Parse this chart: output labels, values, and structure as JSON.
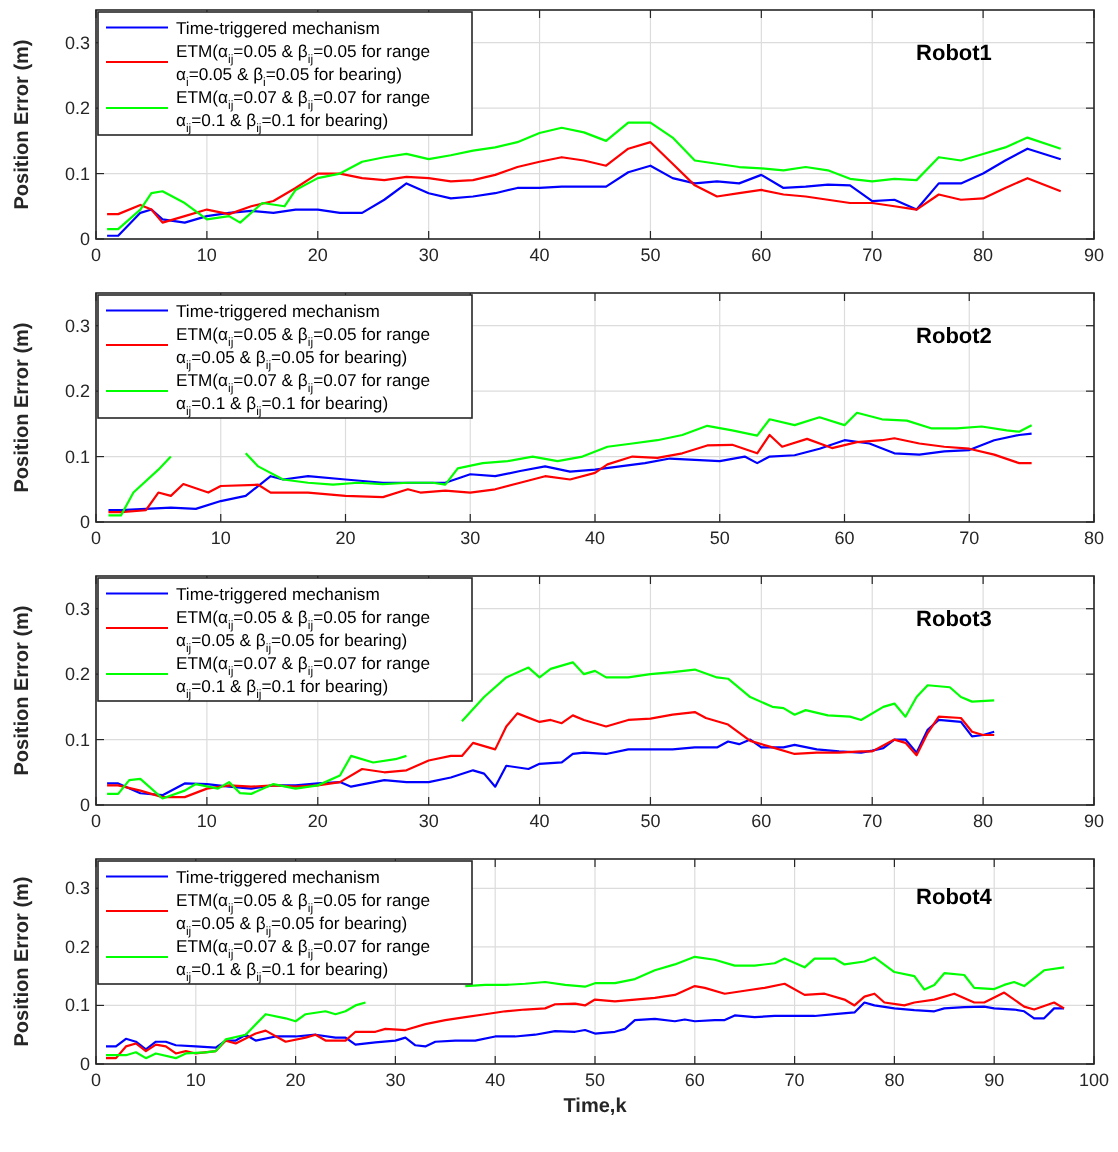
{
  "chart_data": [
    {
      "type": "line",
      "ylabel": "Position Error (m)",
      "xlim": [
        0,
        90
      ],
      "xticks": [
        0,
        10,
        20,
        30,
        40,
        50,
        60,
        70,
        80,
        90
      ],
      "ylim": [
        0,
        0.35
      ],
      "yticks": [
        0,
        0.1,
        0.2,
        0.3
      ],
      "grid": true,
      "legend": "top left",
      "line_style": "solid",
      "annotations": [
        "Robot1"
      ],
      "series": [
        {
          "name": "Time-triggered mechanism",
          "color": "#0000ff",
          "x": [
            1,
            2,
            4,
            5,
            6,
            8,
            10,
            12,
            14,
            16,
            18,
            20,
            22,
            24,
            26,
            28,
            30,
            32,
            34,
            36,
            38,
            40,
            42,
            44,
            46,
            48,
            50,
            52,
            54,
            56,
            58,
            60,
            62,
            64,
            66,
            68,
            70,
            72,
            74,
            76,
            78,
            80,
            82,
            84,
            87
          ],
          "values": [
            0.005,
            0.005,
            0.04,
            0.045,
            0.03,
            0.025,
            0.035,
            0.04,
            0.043,
            0.04,
            0.045,
            0.045,
            0.04,
            0.04,
            0.06,
            0.085,
            0.07,
            0.062,
            0.065,
            0.07,
            0.078,
            0.078,
            0.08,
            0.08,
            0.08,
            0.102,
            0.112,
            0.093,
            0.085,
            0.088,
            0.085,
            0.098,
            0.078,
            0.08,
            0.083,
            0.082,
            0.058,
            0.06,
            0.045,
            0.085,
            0.085,
            0.1,
            0.12,
            0.138,
            0.122
          ]
        },
        {
          "name": "ETM(α$_{ij}$=0.05 & β$_{ij}$=0.05 for range\nα$_{i}$=0.05 & β$_{i}$=0.05 for bearing)",
          "color": "#ff0000",
          "x": [
            1,
            2,
            4,
            5,
            6,
            8,
            10,
            12,
            14,
            16,
            18,
            20,
            22,
            24,
            26,
            28,
            30,
            32,
            34,
            36,
            38,
            40,
            42,
            44,
            46,
            48,
            50,
            52,
            54,
            56,
            58,
            60,
            62,
            64,
            66,
            68,
            70,
            72,
            74,
            76,
            78,
            80,
            82,
            84,
            87
          ],
          "values": [
            0.038,
            0.038,
            0.052,
            0.045,
            0.025,
            0.035,
            0.045,
            0.038,
            0.05,
            0.058,
            0.078,
            0.1,
            0.1,
            0.093,
            0.09,
            0.095,
            0.093,
            0.088,
            0.09,
            0.098,
            0.11,
            0.118,
            0.125,
            0.12,
            0.112,
            0.138,
            0.148,
            0.115,
            0.082,
            0.065,
            0.07,
            0.075,
            0.068,
            0.065,
            0.06,
            0.055,
            0.055,
            0.05,
            0.045,
            0.068,
            0.06,
            0.062,
            0.078,
            0.093,
            0.073
          ]
        },
        {
          "name": "ETM(α$_{ij}$=0.07 & β$_{ij}$=0.07 for range\nα$_{ij}$=0.1 & β$_{ij}$=0.1 for bearing)",
          "color": "#00ff00",
          "x": [
            1,
            2,
            4,
            5,
            6,
            8,
            10,
            12,
            13,
            15,
            17,
            18,
            20,
            22,
            24,
            26,
            28,
            30,
            32,
            34,
            36,
            38,
            40,
            42,
            44,
            46,
            48,
            50,
            52,
            54,
            56,
            58,
            60,
            62,
            64,
            66,
            68,
            70,
            72,
            74,
            76,
            78,
            80,
            82,
            84,
            87
          ],
          "values": [
            0.015,
            0.015,
            0.045,
            0.07,
            0.073,
            0.055,
            0.03,
            0.035,
            0.025,
            0.055,
            0.05,
            0.075,
            0.093,
            0.1,
            0.118,
            0.125,
            0.13,
            0.122,
            0.128,
            0.135,
            0.14,
            0.148,
            0.162,
            0.17,
            0.163,
            0.15,
            0.178,
            0.178,
            0.155,
            0.12,
            0.115,
            0.11,
            0.108,
            0.105,
            0.11,
            0.105,
            0.092,
            0.088,
            0.092,
            0.09,
            0.125,
            0.12,
            0.13,
            0.14,
            0.155,
            0.138
          ]
        }
      ]
    },
    {
      "type": "line",
      "ylabel": "Position Error (m)",
      "xlim": [
        0,
        80
      ],
      "xticks": [
        0,
        10,
        20,
        30,
        40,
        50,
        60,
        70,
        80
      ],
      "ylim": [
        0,
        0.35
      ],
      "yticks": [
        0,
        0.1,
        0.2,
        0.3
      ],
      "grid": true,
      "legend": "top left",
      "line_style": "solid",
      "annotations": [
        "Robot2"
      ],
      "series": [
        {
          "name": "Time-triggered mechanism",
          "color": "#0000ff",
          "x": [
            1,
            2,
            4,
            6,
            8,
            10,
            12,
            14,
            15,
            17,
            20,
            23,
            26,
            28,
            30,
            32,
            34,
            36,
            38,
            40,
            42,
            44,
            46,
            48,
            50,
            52,
            53,
            54,
            56,
            58,
            60,
            62,
            64,
            66,
            68,
            70,
            72,
            74,
            75
          ],
          "values": [
            0.018,
            0.018,
            0.02,
            0.022,
            0.02,
            0.032,
            0.04,
            0.07,
            0.065,
            0.07,
            0.065,
            0.06,
            0.06,
            0.06,
            0.073,
            0.07,
            0.078,
            0.085,
            0.077,
            0.08,
            0.085,
            0.09,
            0.097,
            0.095,
            0.093,
            0.1,
            0.09,
            0.1,
            0.102,
            0.112,
            0.125,
            0.12,
            0.105,
            0.103,
            0.108,
            0.11,
            0.125,
            0.133,
            0.135
          ]
        },
        {
          "name": "ETM(α$_{ij}$=0.05 & β$_{ij}$=0.05 for range\nα$_{ij}$=0.05 & β$_{ij}$=0.05 for bearing)",
          "color": "#ff0000",
          "x": [
            1,
            2,
            4,
            5,
            6,
            7,
            9,
            10,
            13,
            14,
            17,
            20,
            23,
            25,
            26,
            28,
            30,
            32,
            34,
            36,
            38,
            40,
            41,
            43,
            45,
            47,
            49,
            51,
            53,
            54,
            55,
            57,
            59,
            61,
            63,
            64,
            66,
            68,
            70,
            72,
            74,
            75
          ],
          "values": [
            0.015,
            0.015,
            0.018,
            0.045,
            0.04,
            0.058,
            0.045,
            0.055,
            0.057,
            0.045,
            0.045,
            0.04,
            0.038,
            0.05,
            0.045,
            0.048,
            0.045,
            0.05,
            0.06,
            0.07,
            0.065,
            0.075,
            0.088,
            0.1,
            0.098,
            0.105,
            0.117,
            0.118,
            0.105,
            0.133,
            0.115,
            0.127,
            0.113,
            0.122,
            0.125,
            0.128,
            0.12,
            0.115,
            0.112,
            0.103,
            0.09,
            0.09
          ]
        },
        {
          "name": "ETM(α$_{ij}$=0.07 & β$_{ij}$=0.07 for range\nα$_{ij}$=0.1 & β$_{ij}$=0.1 for bearing)",
          "color": "#00ff00",
          "x": [
            1,
            2,
            3,
            5,
            6,
            7,
            12,
            13,
            15,
            17,
            19,
            21,
            23,
            25,
            27,
            28,
            29,
            31,
            33,
            35,
            37,
            39,
            41,
            43,
            45,
            47,
            49,
            51,
            53,
            54,
            56,
            58,
            60,
            61,
            63,
            65,
            67,
            69,
            71,
            73,
            74,
            75
          ],
          "values": [
            0.01,
            0.01,
            0.045,
            0.08,
            0.1,
            null,
            0.105,
            0.085,
            0.065,
            0.06,
            0.057,
            0.06,
            0.058,
            0.06,
            0.06,
            0.057,
            0.082,
            0.09,
            0.093,
            0.1,
            0.093,
            0.1,
            0.115,
            0.12,
            0.125,
            0.133,
            0.147,
            0.14,
            0.132,
            0.157,
            0.148,
            0.16,
            0.148,
            0.167,
            0.157,
            0.155,
            0.143,
            0.143,
            0.146,
            0.14,
            0.138,
            0.148
          ]
        }
      ]
    },
    {
      "type": "line",
      "ylabel": "Position Error (m)",
      "xlim": [
        0,
        90
      ],
      "xticks": [
        0,
        10,
        20,
        30,
        40,
        50,
        60,
        70,
        80,
        90
      ],
      "ylim": [
        0,
        0.35
      ],
      "yticks": [
        0,
        0.1,
        0.2,
        0.3
      ],
      "grid": true,
      "legend": "top left",
      "line_style": "solid",
      "annotations": [
        "Robot3"
      ],
      "series": [
        {
          "name": "Time-triggered mechanism",
          "color": "#0000ff",
          "x": [
            1,
            2,
            4,
            6,
            8,
            10,
            12,
            14,
            16,
            18,
            20,
            22,
            23,
            26,
            28,
            30,
            32,
            34,
            35,
            36,
            37,
            39,
            40,
            42,
            43,
            44,
            46,
            48,
            50,
            52,
            54,
            56,
            57,
            58,
            59,
            60,
            62,
            63,
            65,
            67,
            69,
            70,
            71,
            72,
            73,
            74,
            75,
            76,
            78,
            79,
            80,
            81
          ],
          "values": [
            0.033,
            0.033,
            0.018,
            0.015,
            0.033,
            0.032,
            0.028,
            0.025,
            0.03,
            0.03,
            0.033,
            0.035,
            0.028,
            0.038,
            0.035,
            0.035,
            0.042,
            0.053,
            0.048,
            0.028,
            0.06,
            0.055,
            0.063,
            0.065,
            0.078,
            0.08,
            0.078,
            0.085,
            0.085,
            0.085,
            0.088,
            0.088,
            0.097,
            0.093,
            0.1,
            0.088,
            0.088,
            0.092,
            0.085,
            0.082,
            0.08,
            0.083,
            0.087,
            0.1,
            0.1,
            0.08,
            0.115,
            0.13,
            0.127,
            0.105,
            0.107,
            0.112
          ]
        },
        {
          "name": "ETM(α$_{ij}$=0.05 & β$_{ij}$=0.05 for range\nα$_{ij}$=0.05 & β$_{ij}$=0.05 for bearing)",
          "color": "#ff0000",
          "x": [
            1,
            2,
            4,
            6,
            8,
            10,
            12,
            14,
            16,
            18,
            20,
            22,
            24,
            26,
            28,
            30,
            32,
            33,
            34,
            36,
            37,
            38,
            40,
            41,
            42,
            43,
            44,
            46,
            48,
            50,
            52,
            54,
            55,
            57,
            59,
            61,
            63,
            65,
            67,
            69,
            70,
            72,
            73,
            74,
            75,
            76,
            78,
            79,
            80,
            81
          ],
          "values": [
            0.03,
            0.03,
            0.022,
            0.012,
            0.012,
            0.025,
            0.03,
            0.028,
            0.03,
            0.028,
            0.03,
            0.035,
            0.055,
            0.05,
            0.053,
            0.068,
            0.075,
            0.075,
            0.095,
            0.085,
            0.12,
            0.14,
            0.127,
            0.13,
            0.125,
            0.137,
            0.13,
            0.12,
            0.13,
            0.132,
            0.138,
            0.142,
            0.133,
            0.123,
            0.098,
            0.088,
            0.078,
            0.08,
            0.08,
            0.082,
            0.082,
            0.1,
            0.095,
            0.076,
            0.11,
            0.135,
            0.133,
            0.112,
            0.107,
            0.107
          ]
        },
        {
          "name": "ETM(α$_{ij}$=0.07 & β$_{ij}$=0.07 for range\nα$_{ij}$=0.1 & β$_{ij}$=0.1 for bearing)",
          "color": "#00ff00",
          "x": [
            1,
            2,
            3,
            4,
            6,
            8,
            9,
            11,
            12,
            13,
            14,
            16,
            18,
            20,
            22,
            23,
            25,
            27,
            28,
            30,
            33,
            35,
            37,
            39,
            40,
            41,
            43,
            44,
            45,
            46,
            48,
            50,
            52,
            54,
            56,
            57,
            59,
            61,
            62,
            63,
            64,
            66,
            68,
            69,
            71,
            72,
            73,
            74,
            75,
            77,
            78,
            79,
            81
          ],
          "values": [
            0.017,
            0.017,
            0.038,
            0.04,
            0.01,
            0.022,
            0.032,
            0.025,
            0.035,
            0.018,
            0.017,
            0.032,
            0.025,
            0.03,
            0.045,
            0.075,
            0.065,
            0.07,
            0.075,
            null,
            0.128,
            0.165,
            0.195,
            0.21,
            0.195,
            0.208,
            0.218,
            0.2,
            0.205,
            0.195,
            0.195,
            0.2,
            0.203,
            0.207,
            0.195,
            0.193,
            0.165,
            0.15,
            0.148,
            0.138,
            0.145,
            0.137,
            0.135,
            0.13,
            0.15,
            0.155,
            0.135,
            0.165,
            0.183,
            0.18,
            0.165,
            0.158,
            0.16
          ]
        }
      ]
    },
    {
      "type": "line",
      "xlabel": "Time,k",
      "ylabel": "Position Error (m)",
      "xlim": [
        0,
        100
      ],
      "xticks": [
        0,
        10,
        20,
        30,
        40,
        50,
        60,
        70,
        80,
        90,
        100
      ],
      "ylim": [
        0,
        0.35
      ],
      "yticks": [
        0,
        0.1,
        0.2,
        0.3
      ],
      "grid": true,
      "legend": "top left",
      "line_style": "solid",
      "annotations": [
        "Robot4"
      ],
      "series": [
        {
          "name": "Time-triggered mechanism",
          "color": "#0000ff",
          "x": [
            1,
            2,
            3,
            4,
            5,
            6,
            7,
            8,
            10,
            12,
            13,
            14,
            15,
            16,
            18,
            20,
            22,
            24,
            25,
            26,
            28,
            30,
            31,
            32,
            33,
            34,
            36,
            38,
            40,
            42,
            44,
            46,
            48,
            49,
            50,
            52,
            53,
            54,
            56,
            58,
            59,
            60,
            62,
            63,
            64,
            66,
            68,
            70,
            72,
            74,
            76,
            77,
            78,
            80,
            82,
            84,
            85,
            87,
            89,
            90,
            92,
            93,
            94,
            95,
            96,
            97
          ],
          "values": [
            0.03,
            0.03,
            0.043,
            0.038,
            0.025,
            0.038,
            0.038,
            0.032,
            0.03,
            0.028,
            0.04,
            0.04,
            0.05,
            0.04,
            0.047,
            0.047,
            0.05,
            0.045,
            0.045,
            0.033,
            0.037,
            0.04,
            0.045,
            0.032,
            0.03,
            0.038,
            0.04,
            0.04,
            0.047,
            0.047,
            0.05,
            0.056,
            0.055,
            0.058,
            0.052,
            0.055,
            0.06,
            0.075,
            0.077,
            0.073,
            0.076,
            0.073,
            0.075,
            0.075,
            0.083,
            0.08,
            0.082,
            0.082,
            0.082,
            0.085,
            0.088,
            0.105,
            0.1,
            0.095,
            0.092,
            0.09,
            0.095,
            0.097,
            0.098,
            0.095,
            0.093,
            0.09,
            0.078,
            0.078,
            0.095,
            0.095
          ]
        },
        {
          "name": "ETM(α$_{ij}$=0.05 & β$_{ij}$=0.05 for range\nα$_{ij}$=0.05 & β$_{ij}$=0.05 for bearing)",
          "color": "#ff0000",
          "x": [
            1,
            2,
            3,
            4,
            5,
            6,
            7,
            8,
            9,
            10,
            12,
            13,
            14,
            16,
            17,
            19,
            21,
            22,
            23,
            25,
            26,
            28,
            29,
            31,
            33,
            35,
            37,
            39,
            41,
            43,
            45,
            46,
            48,
            49,
            50,
            52,
            54,
            56,
            58,
            60,
            61,
            63,
            65,
            67,
            69,
            71,
            73,
            75,
            76,
            77,
            78,
            79,
            81,
            82,
            84,
            86,
            88,
            89,
            91,
            93,
            94,
            96,
            97
          ],
          "values": [
            0.01,
            0.01,
            0.03,
            0.035,
            0.022,
            0.033,
            0.03,
            0.018,
            0.022,
            0.018,
            0.022,
            0.04,
            0.035,
            0.052,
            0.057,
            0.038,
            0.045,
            0.05,
            0.04,
            0.04,
            0.055,
            0.055,
            0.06,
            0.058,
            0.068,
            0.075,
            0.08,
            0.085,
            0.09,
            0.093,
            0.095,
            0.102,
            0.103,
            0.1,
            0.11,
            0.107,
            0.11,
            0.113,
            0.118,
            0.133,
            0.13,
            0.12,
            0.125,
            0.13,
            0.137,
            0.118,
            0.12,
            0.11,
            0.1,
            0.115,
            0.12,
            0.105,
            0.1,
            0.105,
            0.11,
            0.12,
            0.105,
            0.105,
            0.122,
            0.098,
            0.093,
            0.105,
            0.095
          ]
        },
        {
          "name": "ETM(α$_{ij}$=0.07 & β$_{ij}$=0.07 for range\nα$_{ij}$=0.1 & β$_{ij}$=0.1 for bearing)",
          "color": "#00ff00",
          "x": [
            1,
            2,
            3,
            4,
            5,
            6,
            8,
            9,
            11,
            12,
            13,
            15,
            17,
            19,
            20,
            21,
            23,
            24,
            25,
            26,
            27,
            28,
            37,
            39,
            41,
            43,
            45,
            47,
            49,
            50,
            52,
            54,
            56,
            58,
            60,
            62,
            64,
            66,
            68,
            69,
            71,
            72,
            74,
            75,
            77,
            78,
            80,
            82,
            83,
            84,
            85,
            87,
            88,
            90,
            91,
            92,
            93,
            95,
            97
          ],
          "values": [
            0.015,
            0.015,
            0.015,
            0.02,
            0.01,
            0.018,
            0.01,
            0.018,
            0.02,
            0.022,
            0.042,
            0.05,
            0.085,
            0.078,
            0.073,
            0.085,
            0.09,
            0.085,
            0.09,
            0.1,
            0.105,
            null,
            0.133,
            0.135,
            0.135,
            0.137,
            0.14,
            0.135,
            0.132,
            0.138,
            0.138,
            0.145,
            0.16,
            0.17,
            0.183,
            0.178,
            0.168,
            0.168,
            0.172,
            0.18,
            0.165,
            0.18,
            0.18,
            0.17,
            0.175,
            0.182,
            0.157,
            0.15,
            0.127,
            0.135,
            0.155,
            0.152,
            0.13,
            0.128,
            0.135,
            0.14,
            0.133,
            0.16,
            0.165
          ]
        }
      ]
    }
  ]
}
